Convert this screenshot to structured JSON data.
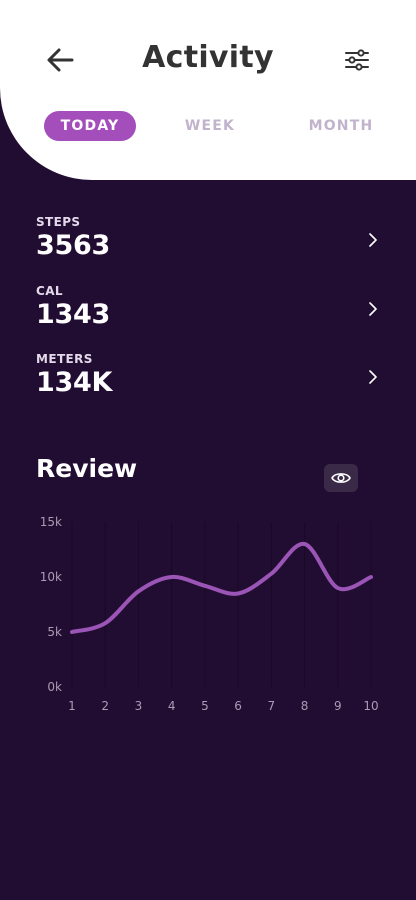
{
  "header": {
    "title": "Activity",
    "back_icon": "arrow-left-icon",
    "filter_icon": "sliders-icon"
  },
  "tabs": [
    {
      "label": "TODAY",
      "active": true
    },
    {
      "label": "WEEK",
      "active": false
    },
    {
      "label": "MONTH",
      "active": false
    }
  ],
  "stats": [
    {
      "label": "STEPS",
      "value": "3563"
    },
    {
      "label": "CAL",
      "value": "1343"
    },
    {
      "label": "METERS",
      "value": "134K"
    }
  ],
  "review": {
    "title": "Review",
    "toggle_icon": "eye-icon"
  },
  "colors": {
    "background": "#220d32",
    "accent": "#a44ebc",
    "line": "#9b55b6"
  },
  "chart_data": {
    "type": "line",
    "x": [
      1,
      2,
      3,
      4,
      5,
      6,
      7,
      8,
      9,
      10
    ],
    "y_tick_labels": [
      "0k",
      "5k",
      "10k",
      "15k"
    ],
    "y_ticks": [
      0,
      5000,
      10000,
      15000
    ],
    "x_tick_labels": [
      "1",
      "2",
      "3",
      "4",
      "5",
      "6",
      "7",
      "8",
      "9",
      "10"
    ],
    "ylim": [
      0,
      15000
    ],
    "xlim": [
      1,
      10
    ],
    "series": [
      {
        "values": [
          5000,
          5800,
          8700,
          10000,
          9200,
          8500,
          10300,
          13000,
          9000,
          10000
        ]
      }
    ],
    "grid": "vertical"
  }
}
